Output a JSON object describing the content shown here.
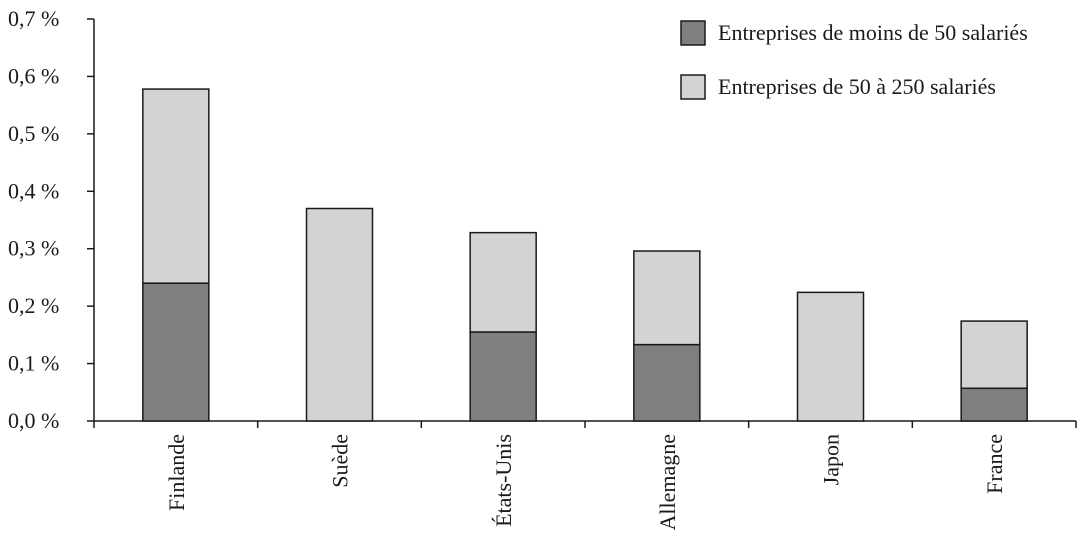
{
  "chart_data": {
    "type": "bar",
    "stacked": true,
    "categories": [
      "Finlande",
      "Suède",
      "États-Unis",
      "Allemagne",
      "Japon",
      "France"
    ],
    "series": [
      {
        "name": "Entreprises de moins de 50 salariés",
        "values": [
          0.24,
          0.0,
          0.155,
          0.133,
          0.0,
          0.057
        ],
        "color": "#7f7f7f"
      },
      {
        "name": "Entreprises de 50 à 250 salariés",
        "values": [
          0.338,
          0.37,
          0.173,
          0.163,
          0.224,
          0.117
        ],
        "color": "#d3d3d3"
      }
    ],
    "ylim": [
      0,
      0.7
    ],
    "yticks": [
      {
        "value": 0.0,
        "label": "0,0 %"
      },
      {
        "value": 0.1,
        "label": "0,1 %"
      },
      {
        "value": 0.2,
        "label": "0,2 %"
      },
      {
        "value": 0.3,
        "label": "0,3 %"
      },
      {
        "value": 0.4,
        "label": "0,4 %"
      },
      {
        "value": 0.5,
        "label": "0,5 %"
      },
      {
        "value": 0.6,
        "label": "0,6 %"
      },
      {
        "value": 0.7,
        "label": "0,7 %"
      }
    ],
    "title": "",
    "xlabel": "",
    "ylabel": "",
    "grid": false,
    "legend_position": "top-right",
    "category_label_orientation": "vertical"
  }
}
